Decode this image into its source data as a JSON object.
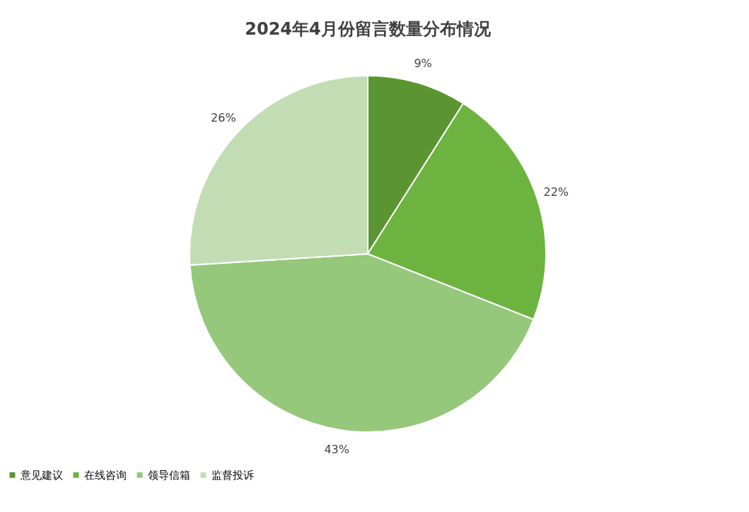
{
  "chart_data": {
    "type": "pie",
    "title": "2024年4月份留言数量分布情况",
    "categories": [
      "意见建议",
      "在线咨询",
      "领导信箱",
      "监督投诉"
    ],
    "values": [
      9,
      22,
      43,
      26
    ],
    "value_labels": [
      "9%",
      "22%",
      "43%",
      "26%"
    ],
    "colors": [
      "#5a9532",
      "#6db33f",
      "#95c87a",
      "#c2ddb4"
    ],
    "legend": "bottom"
  }
}
